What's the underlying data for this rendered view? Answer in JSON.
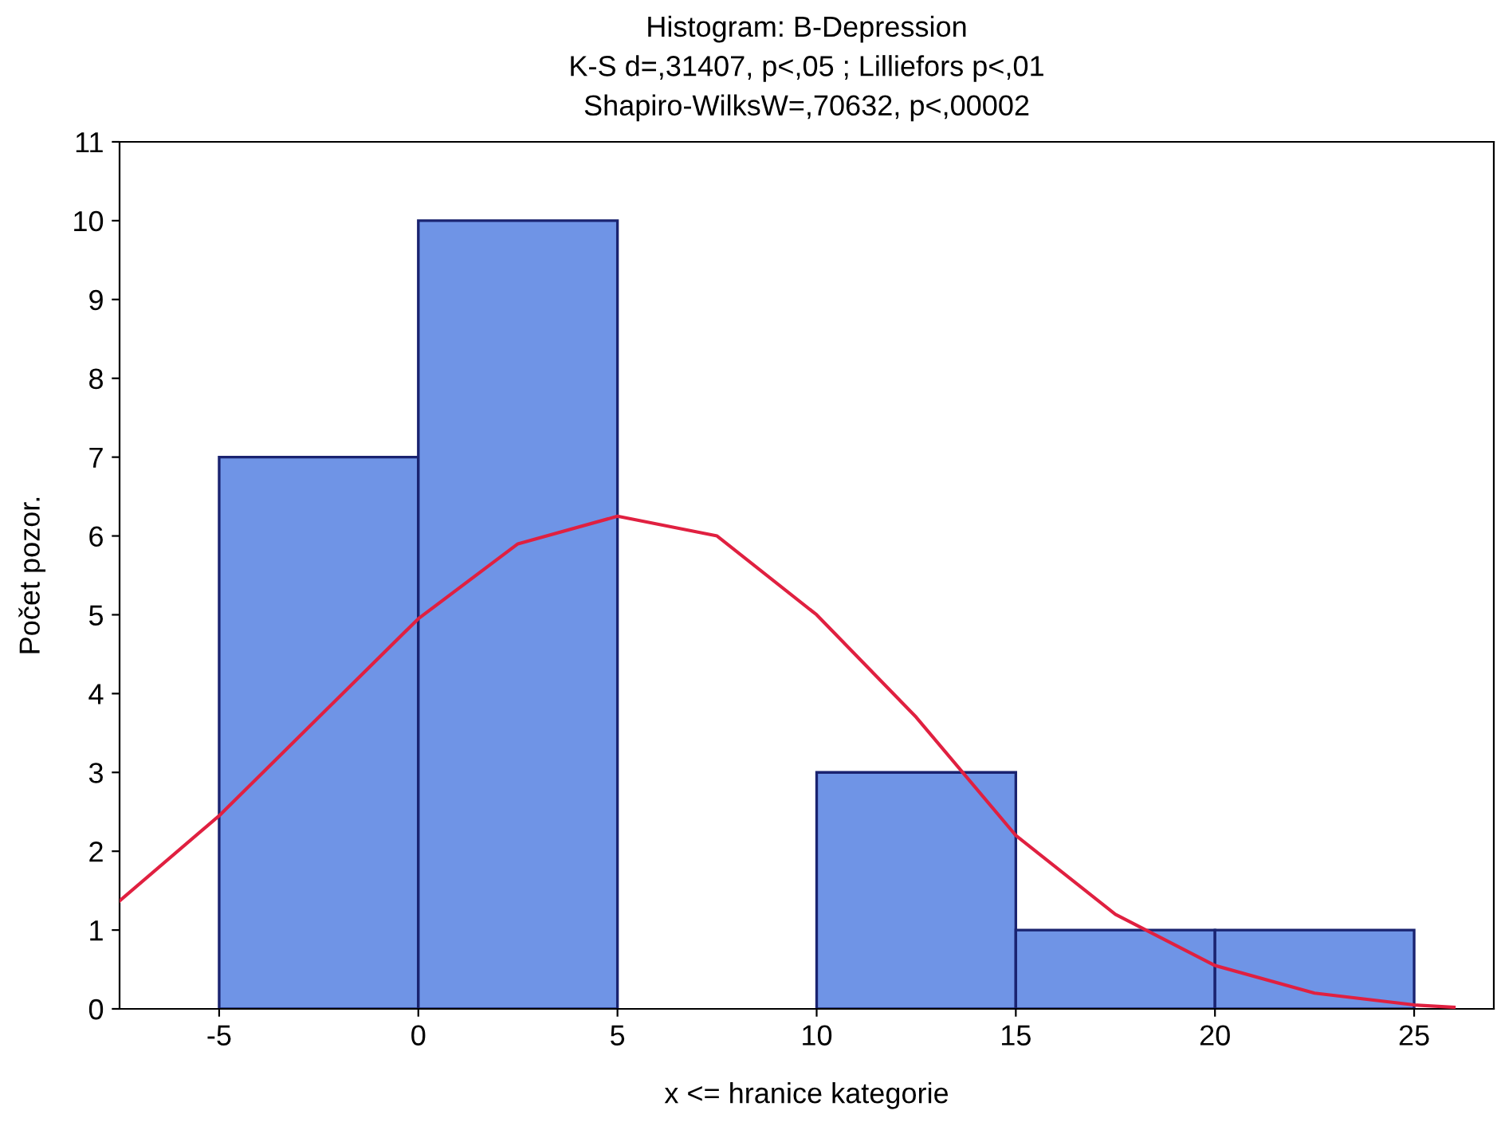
{
  "chart_data": {
    "type": "histogram",
    "title": "Histogram: B-Depression\nK-S d=,31407, p<,05 ; Lilliefors p<,01\nShapiro-WilksW=,70632, p<,00002",
    "xlabel": "x <= hranice kategorie",
    "ylabel": "Počet pozor.",
    "series": [
      {
        "bins": [
          -5,
          0,
          5,
          10,
          15,
          20,
          25
        ],
        "values": [
          7,
          10,
          0,
          3,
          1,
          1
        ],
        "color": "#6f94e6"
      },
      {
        "type": "line",
        "color": "#e02040",
        "x": [
          -7.5,
          -5,
          -2.5,
          0,
          2.5,
          5,
          7.5,
          10,
          12.5,
          15,
          17.5,
          20,
          22.5,
          25,
          26
        ],
        "values": [
          1.37,
          2.45,
          3.7,
          4.95,
          5.9,
          6.25,
          6.0,
          5.0,
          3.7,
          2.2,
          1.2,
          0.55,
          0.2,
          0.05,
          0.02
        ]
      }
    ],
    "xlim": [
      -7.5,
      27
    ],
    "xticks": [
      -5,
      0,
      5,
      10,
      15,
      20,
      25
    ],
    "ylim": [
      0,
      11
    ],
    "yticks": [
      0,
      1,
      2,
      3,
      4,
      5,
      6,
      7,
      8,
      9,
      10,
      11
    ],
    "grid": false,
    "legend": false
  }
}
